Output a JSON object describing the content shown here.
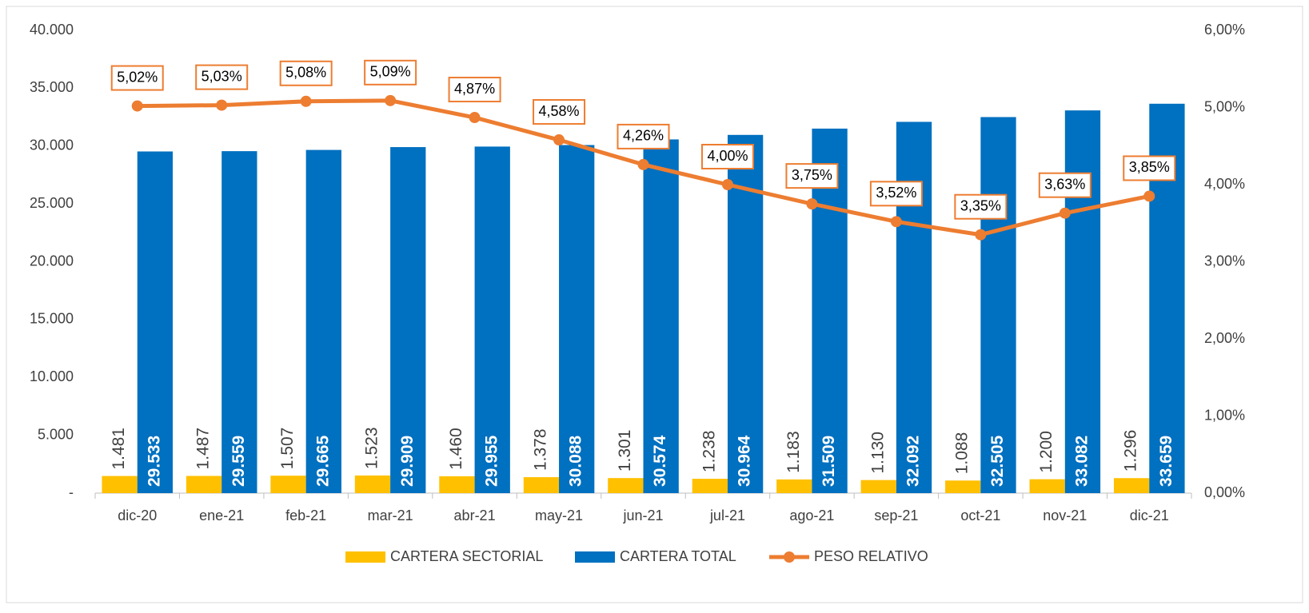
{
  "chart_data": {
    "type": "bar",
    "categories": [
      "dic-20",
      "ene-21",
      "feb-21",
      "mar-21",
      "abr-21",
      "may-21",
      "jun-21",
      "jul-21",
      "ago-21",
      "sep-21",
      "oct-21",
      "nov-21",
      "dic-21"
    ],
    "series": [
      {
        "name": "CARTERA SECTORIAL",
        "color": "#FFC000",
        "values": [
          1481,
          1487,
          1507,
          1523,
          1460,
          1378,
          1301,
          1238,
          1183,
          1130,
          1088,
          1200,
          1296
        ],
        "value_labels": [
          "1.481",
          "1.487",
          "1.507",
          "1.523",
          "1.460",
          "1.378",
          "1.301",
          "1.238",
          "1.183",
          "1.130",
          "1.088",
          "1.200",
          "1.296"
        ]
      },
      {
        "name": "CARTERA TOTAL",
        "color": "#0070C0",
        "values": [
          29533,
          29559,
          29665,
          29909,
          29955,
          30088,
          30574,
          30964,
          31509,
          32092,
          32505,
          33082,
          33659
        ],
        "value_labels": [
          "29.533",
          "29.559",
          "29.665",
          "29.909",
          "29.955",
          "30.088",
          "30.574",
          "30.964",
          "31.509",
          "32.092",
          "32.505",
          "33.082",
          "33.659"
        ]
      },
      {
        "name": "PESO RELATIVO",
        "color": "#ED7D31",
        "type": "line",
        "axis": "y2",
        "values": [
          5.02,
          5.03,
          5.08,
          5.09,
          4.87,
          4.58,
          4.26,
          4.0,
          3.75,
          3.52,
          3.35,
          3.63,
          3.85
        ],
        "value_labels": [
          "5,02%",
          "5,03%",
          "5,08%",
          "5,09%",
          "4,87%",
          "4,58%",
          "4,26%",
          "4,00%",
          "3,75%",
          "3,52%",
          "3,35%",
          "3,63%",
          "3,85%"
        ]
      }
    ],
    "ylim": [
      0,
      40000
    ],
    "yticks": [
      {
        "value": 0,
        "label": "-"
      },
      {
        "value": 5000,
        "label": "5.000"
      },
      {
        "value": 10000,
        "label": "10.000"
      },
      {
        "value": 15000,
        "label": "15.000"
      },
      {
        "value": 20000,
        "label": "20.000"
      },
      {
        "value": 25000,
        "label": "25.000"
      },
      {
        "value": 30000,
        "label": "30.000"
      },
      {
        "value": 35000,
        "label": "35.000"
      },
      {
        "value": 40000,
        "label": "40.000"
      }
    ],
    "y2lim": [
      0,
      6
    ],
    "y2ticks": [
      {
        "value": 0,
        "label": "0,00%"
      },
      {
        "value": 1,
        "label": "1,00%"
      },
      {
        "value": 2,
        "label": "2,00%"
      },
      {
        "value": 3,
        "label": "3,00%"
      },
      {
        "value": 4,
        "label": "4,00%"
      },
      {
        "value": 5,
        "label": "5,00%"
      },
      {
        "value": 6,
        "label": "6,00%"
      }
    ],
    "grid": false,
    "legend": "bottom"
  }
}
